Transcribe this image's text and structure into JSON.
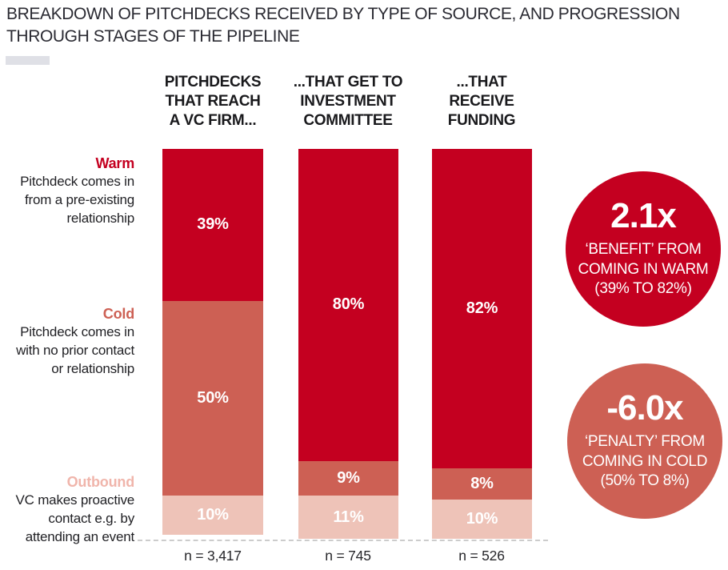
{
  "title": "BREAKDOWN OF PITCHDECKS RECEIVED BY TYPE OF SOURCE, AND PROGRESSION\nTHROUGH STAGES OF THE PIPELINE",
  "colors": {
    "warm": "#c40020",
    "cold": "#cd6054",
    "outbound": "#eec3b8",
    "outbound_label": "#f0b5ab",
    "swatch": "#dfe0e6",
    "dashed_line": "#cccccc",
    "text": "#1f1f23"
  },
  "row_labels": [
    {
      "name": "Warm",
      "description": "Pitchdeck comes in\nfrom a pre-existing\nrelationship"
    },
    {
      "name": "Cold",
      "description": "Pitchdeck comes in\nwith no prior contact\nor relationship"
    },
    {
      "name": "Outbound",
      "description": "VC makes proactive\ncontact e.g. by\nattending an event"
    }
  ],
  "chart_data": {
    "type": "bar",
    "stacked": true,
    "orientation": "vertical",
    "unit": "%",
    "ylim": [
      0,
      100
    ],
    "title": "BREAKDOWN OF PITCHDECKS RECEIVED BY TYPE OF SOURCE, AND PROGRESSION THROUGH STAGES OF THE PIPELINE",
    "categories": [
      "PITCHDECKS THAT REACH A VC FIRM...",
      "...THAT GET TO INVESTMENT COMMITTEE",
      "...THAT RECEIVE FUNDING"
    ],
    "series": [
      {
        "name": "Warm",
        "values": [
          39,
          80,
          82
        ]
      },
      {
        "name": "Cold",
        "values": [
          50,
          9,
          8
        ]
      },
      {
        "name": "Outbound",
        "values": [
          10,
          11,
          10
        ]
      }
    ],
    "sample_sizes": [
      "n = 3,417",
      "n = 745",
      "n = 526"
    ],
    "columns": [
      {
        "header": "PITCHDECKS\nTHAT REACH\nA VC FIRM...",
        "n_label": "n = 3,417",
        "segments": [
          {
            "key": "warm",
            "value": 39,
            "label": "39%"
          },
          {
            "key": "cold",
            "value": 50,
            "label": "50%"
          },
          {
            "key": "outbound",
            "value": 10,
            "label": "10%"
          }
        ]
      },
      {
        "header": "...THAT GET TO\nINVESTMENT\nCOMMITTEE",
        "n_label": "n = 745",
        "segments": [
          {
            "key": "warm",
            "value": 80,
            "label": "80%"
          },
          {
            "key": "cold",
            "value": 9,
            "label": "9%"
          },
          {
            "key": "outbound",
            "value": 11,
            "label": "11%"
          }
        ]
      },
      {
        "header": "...THAT\nRECEIVE\nFUNDING",
        "n_label": "n = 526",
        "segments": [
          {
            "key": "warm",
            "value": 82,
            "label": "82%"
          },
          {
            "key": "cold",
            "value": 8,
            "label": "8%"
          },
          {
            "key": "outbound",
            "value": 10,
            "label": "10%"
          }
        ]
      }
    ]
  },
  "callouts": [
    {
      "value": "2.1x",
      "text": "‘BENEFIT’ FROM\nCOMING IN WARM\n(39% TO 82%)"
    },
    {
      "value": "-6.0x",
      "text": "‘PENALTY’ FROM\nCOMING IN COLD\n(50% TO 8%)"
    }
  ]
}
